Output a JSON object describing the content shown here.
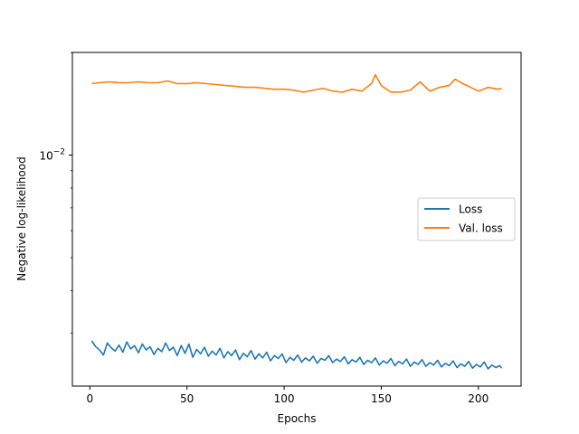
{
  "chart_data": {
    "type": "line",
    "xlabel": "Epochs",
    "ylabel": "Negative log-likelihood",
    "yscale": "log",
    "xlim": [
      -9,
      222
    ],
    "ylim": [
      0.0021,
      0.02
    ],
    "grid": false,
    "legend_position": "center-right",
    "x_ticks": [
      0,
      50,
      100,
      150,
      200
    ],
    "x_tick_labels": [
      "0",
      "50",
      "100",
      "150",
      "200"
    ],
    "y_ticks": [
      0.01
    ],
    "y_tick_base": "10",
    "y_tick_exponent": "−2",
    "series": [
      {
        "name": "Loss",
        "color": "#1f77b4",
        "points": [
          [
            1,
            0.00285
          ],
          [
            3,
            0.00274
          ],
          [
            5,
            0.00268
          ],
          [
            7,
            0.00259
          ],
          [
            9,
            0.00281
          ],
          [
            11,
            0.00272
          ],
          [
            13,
            0.00266
          ],
          [
            15,
            0.00277
          ],
          [
            17,
            0.00264
          ],
          [
            19,
            0.00283
          ],
          [
            21,
            0.0027
          ],
          [
            23,
            0.00276
          ],
          [
            25,
            0.00263
          ],
          [
            27,
            0.00279
          ],
          [
            29,
            0.00268
          ],
          [
            31,
            0.00274
          ],
          [
            33,
            0.0026
          ],
          [
            35,
            0.00271
          ],
          [
            37,
            0.00265
          ],
          [
            39,
            0.00281
          ],
          [
            41,
            0.00267
          ],
          [
            43,
            0.00273
          ],
          [
            45,
            0.00258
          ],
          [
            47,
            0.00276
          ],
          [
            49,
            0.00262
          ],
          [
            51,
            0.00279
          ],
          [
            53,
            0.00255
          ],
          [
            55,
            0.00269
          ],
          [
            57,
            0.00261
          ],
          [
            59,
            0.00273
          ],
          [
            61,
            0.00257
          ],
          [
            63,
            0.00266
          ],
          [
            65,
            0.00259
          ],
          [
            67,
            0.00271
          ],
          [
            69,
            0.00254
          ],
          [
            71,
            0.00265
          ],
          [
            73,
            0.00258
          ],
          [
            75,
            0.00268
          ],
          [
            77,
            0.00251
          ],
          [
            79,
            0.00262
          ],
          [
            81,
            0.00256
          ],
          [
            83,
            0.00267
          ],
          [
            85,
            0.00252
          ],
          [
            87,
            0.00261
          ],
          [
            89,
            0.00254
          ],
          [
            91,
            0.00264
          ],
          [
            93,
            0.00249
          ],
          [
            95,
            0.00258
          ],
          [
            97,
            0.00253
          ],
          [
            99,
            0.00261
          ],
          [
            101,
            0.00246
          ],
          [
            103,
            0.00255
          ],
          [
            105,
            0.0025
          ],
          [
            107,
            0.00259
          ],
          [
            109,
            0.00247
          ],
          [
            111,
            0.00254
          ],
          [
            113,
            0.00249
          ],
          [
            115,
            0.00257
          ],
          [
            117,
            0.00245
          ],
          [
            119,
            0.00253
          ],
          [
            121,
            0.0025
          ],
          [
            123,
            0.00258
          ],
          [
            125,
            0.00246
          ],
          [
            127,
            0.00252
          ],
          [
            129,
            0.00248
          ],
          [
            131,
            0.00256
          ],
          [
            133,
            0.00244
          ],
          [
            135,
            0.00251
          ],
          [
            137,
            0.00247
          ],
          [
            139,
            0.00255
          ],
          [
            141,
            0.00243
          ],
          [
            143,
            0.0025
          ],
          [
            145,
            0.00246
          ],
          [
            147,
            0.00254
          ],
          [
            149,
            0.00242
          ],
          [
            151,
            0.00249
          ],
          [
            153,
            0.00245
          ],
          [
            155,
            0.00253
          ],
          [
            157,
            0.00241
          ],
          [
            159,
            0.00248
          ],
          [
            161,
            0.00244
          ],
          [
            163,
            0.00252
          ],
          [
            165,
            0.0024
          ],
          [
            167,
            0.00247
          ],
          [
            169,
            0.00243
          ],
          [
            171,
            0.00251
          ],
          [
            173,
            0.0024
          ],
          [
            175,
            0.00246
          ],
          [
            177,
            0.00242
          ],
          [
            179,
            0.0025
          ],
          [
            181,
            0.00239
          ],
          [
            183,
            0.00245
          ],
          [
            185,
            0.00241
          ],
          [
            187,
            0.00249
          ],
          [
            189,
            0.00238
          ],
          [
            191,
            0.00244
          ],
          [
            193,
            0.0024
          ],
          [
            195,
            0.00248
          ],
          [
            197,
            0.00237
          ],
          [
            199,
            0.00243
          ],
          [
            201,
            0.00239
          ],
          [
            203,
            0.00247
          ],
          [
            205,
            0.00236
          ],
          [
            207,
            0.00242
          ],
          [
            209,
            0.00238
          ],
          [
            211,
            0.00241
          ],
          [
            212,
            0.00237
          ]
        ]
      },
      {
        "name": "Val. loss",
        "color": "#ff7f0e",
        "points": [
          [
            1,
            0.0162
          ],
          [
            5,
            0.0163
          ],
          [
            10,
            0.0164
          ],
          [
            15,
            0.0163
          ],
          [
            20,
            0.0163
          ],
          [
            25,
            0.0164
          ],
          [
            30,
            0.0163
          ],
          [
            35,
            0.0163
          ],
          [
            40,
            0.0165
          ],
          [
            45,
            0.0162
          ],
          [
            50,
            0.0162
          ],
          [
            55,
            0.0163
          ],
          [
            60,
            0.0162
          ],
          [
            65,
            0.0161
          ],
          [
            70,
            0.016
          ],
          [
            75,
            0.0159
          ],
          [
            80,
            0.0158
          ],
          [
            85,
            0.0158
          ],
          [
            90,
            0.0157
          ],
          [
            95,
            0.0156
          ],
          [
            100,
            0.0156
          ],
          [
            105,
            0.0155
          ],
          [
            110,
            0.0153
          ],
          [
            115,
            0.0155
          ],
          [
            120,
            0.0157
          ],
          [
            125,
            0.0154
          ],
          [
            130,
            0.0153
          ],
          [
            135,
            0.0156
          ],
          [
            140,
            0.0154
          ],
          [
            145,
            0.0162
          ],
          [
            147,
            0.0172
          ],
          [
            150,
            0.016
          ],
          [
            155,
            0.0153
          ],
          [
            160,
            0.0153
          ],
          [
            165,
            0.0155
          ],
          [
            170,
            0.0164
          ],
          [
            175,
            0.0154
          ],
          [
            180,
            0.0158
          ],
          [
            185,
            0.016
          ],
          [
            188,
            0.0167
          ],
          [
            192,
            0.0162
          ],
          [
            196,
            0.0158
          ],
          [
            200,
            0.0154
          ],
          [
            205,
            0.0158
          ],
          [
            210,
            0.0156
          ],
          [
            212,
            0.0157
          ]
        ]
      }
    ]
  }
}
